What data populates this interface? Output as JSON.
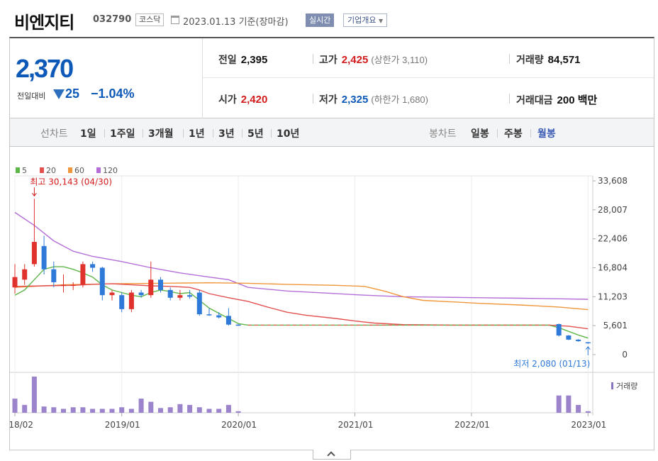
{
  "header": {
    "name": "비엔지티",
    "code": "032790",
    "market": "코스닥",
    "date": "2023.01.13",
    "basis": "기준(장마감)",
    "realtime_label": "실시간",
    "corp_label": "기업개요"
  },
  "summary": {
    "price": "2,370",
    "change_label": "전일대비",
    "change": "25",
    "change_rate": "−1.04%",
    "prev_label": "전일",
    "prev": "2,395",
    "high_label": "고가",
    "high": "2,425",
    "upper_limit": "(상한가 3,110)",
    "volume_label": "거래량",
    "volume": "84,571",
    "open_label": "시가",
    "open": "2,420",
    "low_label": "저가",
    "low": "2,325",
    "lower_limit": "(하한가 1,680)",
    "amount_label": "거래대금",
    "amount": "200 백만"
  },
  "periodbar": {
    "line_label": "선차트",
    "line_periods": [
      "1일",
      "1주일",
      "3개월",
      "1년",
      "3년",
      "5년",
      "10년"
    ],
    "candle_label": "봉차트",
    "candle_periods": [
      "일봉",
      "주봉",
      "월봉"
    ],
    "active_candle": "월봉"
  },
  "chart_data": {
    "type": "candlestick",
    "legend": [
      {
        "name": "5",
        "color": "#5fb74a"
      },
      {
        "name": "20",
        "color": "#e25050"
      },
      {
        "name": "60",
        "color": "#f0963a"
      },
      {
        "name": "120",
        "color": "#b36ed8"
      }
    ],
    "y_ticks": [
      "33,608",
      "28,007",
      "22,406",
      "16,804",
      "11,203",
      "5,601",
      "0"
    ],
    "ylim": [
      0,
      33608
    ],
    "x_ticks": [
      {
        "label": "2018/02",
        "month": 0
      },
      {
        "label": "2019/01",
        "month": 11
      },
      {
        "label": "2020/01",
        "month": 23
      },
      {
        "label": "2021/01",
        "month": 35
      },
      {
        "label": "2022/01",
        "month": 47
      },
      {
        "label": "2023/01",
        "month": 59
      }
    ],
    "annotations": {
      "max_label": "최고 30,143 (04/30)",
      "max_month": 2,
      "max_value": 30143,
      "min_label": "최저 2,080 (01/13)",
      "min_month": 59,
      "min_value": 2080
    },
    "volume_label": "거래량",
    "candles": [
      {
        "m": 0,
        "o": 13000,
        "h": 17500,
        "l": 11800,
        "c": 15000
      },
      {
        "m": 1,
        "o": 14500,
        "h": 17500,
        "l": 13500,
        "c": 16500
      },
      {
        "m": 2,
        "o": 17500,
        "h": 30143,
        "l": 17000,
        "c": 21800
      },
      {
        "m": 3,
        "o": 21000,
        "h": 23000,
        "l": 15500,
        "c": 16500
      },
      {
        "m": 4,
        "o": 16500,
        "h": 18000,
        "l": 13000,
        "c": 14000
      },
      {
        "m": 5,
        "o": 13500,
        "h": 15500,
        "l": 12000,
        "c": 13500
      },
      {
        "m": 6,
        "o": 13500,
        "h": 14000,
        "l": 12500,
        "c": 13500
      },
      {
        "m": 7,
        "o": 13500,
        "h": 18000,
        "l": 13000,
        "c": 17500
      },
      {
        "m": 8,
        "o": 17500,
        "h": 18000,
        "l": 16000,
        "c": 16800
      },
      {
        "m": 9,
        "o": 16800,
        "h": 17000,
        "l": 10500,
        "c": 11500
      },
      {
        "m": 10,
        "o": 11500,
        "h": 12500,
        "l": 10500,
        "c": 12000
      },
      {
        "m": 11,
        "o": 11500,
        "h": 12000,
        "l": 8200,
        "c": 8800
      },
      {
        "m": 12,
        "o": 8800,
        "h": 12500,
        "l": 8200,
        "c": 12000
      },
      {
        "m": 13,
        "o": 12000,
        "h": 12500,
        "l": 11000,
        "c": 11500
      },
      {
        "m": 14,
        "o": 11500,
        "h": 18000,
        "l": 11000,
        "c": 14500
      },
      {
        "m": 15,
        "o": 14500,
        "h": 15000,
        "l": 12000,
        "c": 12500
      },
      {
        "m": 16,
        "o": 12500,
        "h": 13000,
        "l": 10500,
        "c": 11000
      },
      {
        "m": 17,
        "o": 11000,
        "h": 12500,
        "l": 10500,
        "c": 11500
      },
      {
        "m": 18,
        "o": 11500,
        "h": 12500,
        "l": 10800,
        "c": 11200
      },
      {
        "m": 19,
        "o": 12000,
        "h": 12500,
        "l": 7500,
        "c": 7800
      },
      {
        "m": 20,
        "o": 7800,
        "h": 9000,
        "l": 7500,
        "c": 7600
      },
      {
        "m": 21,
        "o": 7600,
        "h": 8200,
        "l": 7000,
        "c": 7200
      },
      {
        "m": 22,
        "o": 7500,
        "h": 9000,
        "l": 5600,
        "c": 5800
      },
      {
        "m": 23,
        "o": 5800,
        "h": 5900,
        "l": 5600,
        "c": 5700
      },
      {
        "m": 56,
        "o": 5900,
        "h": 6000,
        "l": 3500,
        "c": 3700
      },
      {
        "m": 57,
        "o": 3700,
        "h": 3800,
        "l": 2800,
        "c": 2900
      },
      {
        "m": 58,
        "o": 2900,
        "h": 3000,
        "l": 2500,
        "c": 2600
      },
      {
        "m": 59,
        "o": 2395,
        "h": 2425,
        "l": 2080,
        "c": 2370
      }
    ],
    "ma5": [
      [
        0,
        11500
      ],
      [
        1,
        12500
      ],
      [
        2,
        14500
      ],
      [
        3,
        16500
      ],
      [
        4,
        17000
      ],
      [
        5,
        17000
      ],
      [
        6,
        16500
      ],
      [
        7,
        15800
      ],
      [
        8,
        15000
      ],
      [
        9,
        13500
      ],
      [
        10,
        12500
      ],
      [
        11,
        12000
      ],
      [
        12,
        11500
      ],
      [
        13,
        11200
      ],
      [
        14,
        12000
      ],
      [
        15,
        12500
      ],
      [
        16,
        12200
      ],
      [
        17,
        11800
      ],
      [
        18,
        12000
      ],
      [
        19,
        10500
      ],
      [
        20,
        9000
      ],
      [
        21,
        8000
      ],
      [
        22,
        7000
      ],
      [
        23,
        6000
      ],
      [
        24,
        5700
      ],
      [
        30,
        5700
      ],
      [
        40,
        5700
      ],
      [
        50,
        5700
      ],
      [
        55,
        5700
      ],
      [
        56,
        5200
      ],
      [
        57,
        4500
      ],
      [
        58,
        3800
      ],
      [
        59,
        3200
      ]
    ],
    "ma20": [
      [
        0,
        13200
      ],
      [
        3,
        13300
      ],
      [
        6,
        13400
      ],
      [
        8,
        13600
      ],
      [
        10,
        13700
      ],
      [
        12,
        13500
      ],
      [
        14,
        13300
      ],
      [
        16,
        13200
      ],
      [
        18,
        13000
      ],
      [
        19,
        12500
      ],
      [
        20,
        11800
      ],
      [
        22,
        11000
      ],
      [
        24,
        10300
      ],
      [
        26,
        9200
      ],
      [
        28,
        8200
      ],
      [
        30,
        7600
      ],
      [
        33,
        7000
      ],
      [
        35,
        6500
      ],
      [
        37,
        6100
      ],
      [
        40,
        5800
      ],
      [
        45,
        5700
      ],
      [
        50,
        5700
      ],
      [
        55,
        5700
      ],
      [
        57,
        5500
      ],
      [
        59,
        5000
      ]
    ],
    "ma60": [
      [
        0,
        13000
      ],
      [
        5,
        13500
      ],
      [
        10,
        13700
      ],
      [
        15,
        13800
      ],
      [
        20,
        13900
      ],
      [
        24,
        13800
      ],
      [
        28,
        13600
      ],
      [
        33,
        13400
      ],
      [
        36,
        13200
      ],
      [
        38,
        12300
      ],
      [
        40,
        11200
      ],
      [
        42,
        10500
      ],
      [
        45,
        10200
      ],
      [
        48,
        9900
      ],
      [
        52,
        9600
      ],
      [
        56,
        9200
      ],
      [
        59,
        8700
      ]
    ],
    "ma120": [
      [
        0,
        27500
      ],
      [
        2,
        25000
      ],
      [
        4,
        22000
      ],
      [
        6,
        20000
      ],
      [
        8,
        19000
      ],
      [
        11,
        18000
      ],
      [
        14,
        16800
      ],
      [
        17,
        15800
      ],
      [
        20,
        15000
      ],
      [
        22,
        14500
      ],
      [
        24,
        13000
      ],
      [
        28,
        12300
      ],
      [
        32,
        11900
      ],
      [
        36,
        11500
      ],
      [
        40,
        11200
      ],
      [
        44,
        11100
      ],
      [
        48,
        11000
      ],
      [
        52,
        10900
      ],
      [
        56,
        10800
      ],
      [
        59,
        10700
      ]
    ],
    "volumes": [
      {
        "m": 0,
        "v": 18,
        "up": true
      },
      {
        "m": 1,
        "v": 10,
        "up": true
      },
      {
        "m": 2,
        "v": 46,
        "up": true
      },
      {
        "m": 3,
        "v": 8,
        "up": false
      },
      {
        "m": 4,
        "v": 7,
        "up": false
      },
      {
        "m": 5,
        "v": 5,
        "up": true
      },
      {
        "m": 6,
        "v": 7,
        "up": true
      },
      {
        "m": 7,
        "v": 7,
        "up": true
      },
      {
        "m": 8,
        "v": 5,
        "up": false
      },
      {
        "m": 9,
        "v": 5,
        "up": false
      },
      {
        "m": 10,
        "v": 5,
        "up": true
      },
      {
        "m": 11,
        "v": 7,
        "up": false
      },
      {
        "m": 12,
        "v": 5,
        "up": true
      },
      {
        "m": 13,
        "v": 18,
        "up": true
      },
      {
        "m": 14,
        "v": 14,
        "up": true
      },
      {
        "m": 15,
        "v": 6,
        "up": false
      },
      {
        "m": 16,
        "v": 7,
        "up": false
      },
      {
        "m": 17,
        "v": 11,
        "up": true
      },
      {
        "m": 18,
        "v": 10,
        "up": false
      },
      {
        "m": 19,
        "v": 7,
        "up": false
      },
      {
        "m": 20,
        "v": 5,
        "up": false
      },
      {
        "m": 21,
        "v": 5,
        "up": false
      },
      {
        "m": 22,
        "v": 10,
        "up": false
      },
      {
        "m": 23,
        "v": 2,
        "up": false
      },
      {
        "m": 56,
        "v": 22,
        "up": false
      },
      {
        "m": 57,
        "v": 22,
        "up": false
      },
      {
        "m": 58,
        "v": 10,
        "up": false
      },
      {
        "m": 59,
        "v": 2,
        "up": false
      }
    ]
  }
}
